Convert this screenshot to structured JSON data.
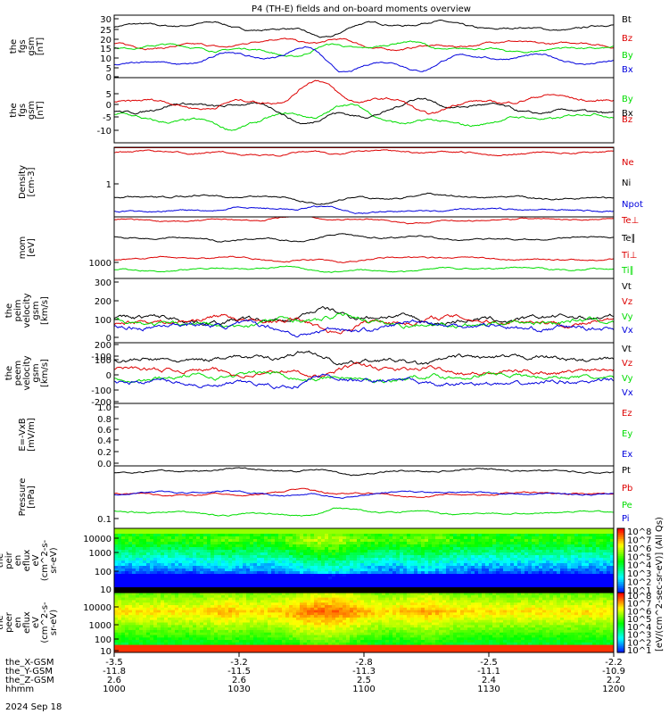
{
  "title": "P4 (TH-E) fields and on-board moments overview",
  "date_label": "2024 Sep 18",
  "colorbar_label": "[eV/(cm^2-sec-sr-eV)] (All Qs)",
  "colorbar_ticks": [
    "10^8",
    "10^7",
    "10^6",
    "10^5",
    "10^4",
    "10^3",
    "10^2",
    "10^1"
  ],
  "time_axis": {
    "rows": [
      {
        "label": "the_X-GSM",
        "values": [
          "-3.5",
          "-3.2",
          "-2.8",
          "-2.5",
          "-2.2"
        ]
      },
      {
        "label": "the_Y-GSM",
        "values": [
          "-11.8",
          "-11.5",
          "-11.3",
          "-11.1",
          "-10.9"
        ]
      },
      {
        "label": "the_Z-GSM",
        "values": [
          "2.6",
          "2.6",
          "2.5",
          "2.4",
          "2.2"
        ]
      },
      {
        "label": "hhmm",
        "values": [
          "1000",
          "1030",
          "1100",
          "1130",
          "1200"
        ]
      }
    ]
  },
  "colors": {
    "black": "#000000",
    "red": "#dd0000",
    "green": "#00dd00",
    "blue": "#0000dd"
  },
  "chart_data": [
    {
      "type": "line",
      "ylabel": "the fgs gsm [nT]",
      "ylim": [
        0,
        32
      ],
      "yticks": [
        "30",
        "25",
        "20",
        "15",
        "10",
        "5",
        "0"
      ],
      "series": [
        {
          "name": "Bt",
          "color": "black",
          "level": 26
        },
        {
          "name": "Bz",
          "color": "red",
          "level": 17
        },
        {
          "name": "By",
          "color": "green",
          "level": 15
        },
        {
          "name": "Bx",
          "color": "blue",
          "level": 9
        }
      ]
    },
    {
      "type": "line",
      "ylabel": "the fgs gsm [nT]",
      "ylim": [
        -15,
        10
      ],
      "yticks": [
        "5",
        "0",
        "-5",
        "-10"
      ],
      "series": [
        {
          "name": "By",
          "color": "green",
          "level": -6
        },
        {
          "name": "Bx",
          "color": "black",
          "level": -2
        },
        {
          "name": "Bz",
          "color": "red",
          "level": 1
        }
      ]
    },
    {
      "type": "line",
      "ylabel": "Density [cm-3]",
      "yscale": "log",
      "yticks": [
        "1"
      ],
      "series": [
        {
          "name": "Ne",
          "color": "red"
        },
        {
          "name": "Ni",
          "color": "black"
        },
        {
          "name": "Npot",
          "color": "blue"
        }
      ]
    },
    {
      "type": "line",
      "ylabel": "mom [eV]",
      "yscale": "log",
      "yticks": [
        "1000"
      ],
      "series": [
        {
          "name": "Te⊥",
          "color": "red"
        },
        {
          "name": "Te∥",
          "color": "black"
        },
        {
          "name": "Ti⊥",
          "color": "red"
        },
        {
          "name": "Ti∥",
          "color": "green"
        }
      ]
    },
    {
      "type": "line",
      "ylabel": "the peim velocity gsm [km/s]",
      "ylim": [
        -150,
        330
      ],
      "yticks": [
        "300",
        "200",
        "100",
        "0",
        "-100"
      ],
      "series": [
        {
          "name": "Vt",
          "color": "black"
        },
        {
          "name": "Vz",
          "color": "red"
        },
        {
          "name": "Vy",
          "color": "green"
        },
        {
          "name": "Vx",
          "color": "blue"
        }
      ]
    },
    {
      "type": "line",
      "ylabel": "the peem velocity gsm [km/s]",
      "ylim": [
        -200,
        210
      ],
      "yticks": [
        "200",
        "100",
        "0",
        "-100",
        "-200"
      ],
      "series": [
        {
          "name": "Vt",
          "color": "black"
        },
        {
          "name": "Vz",
          "color": "red"
        },
        {
          "name": "Vy",
          "color": "green"
        },
        {
          "name": "Vx",
          "color": "blue"
        }
      ]
    },
    {
      "type": "line",
      "ylabel": "E=-VxB [mV/m]",
      "ylim": [
        0,
        1
      ],
      "yticks": [
        "1.0",
        "0.8",
        "0.6",
        "0.4",
        "0.2",
        "0.0"
      ],
      "series": [
        {
          "name": "Ez",
          "color": "red"
        },
        {
          "name": "Ey",
          "color": "green"
        },
        {
          "name": "Ex",
          "color": "blue"
        }
      ]
    },
    {
      "type": "line",
      "ylabel": "Pressure [nPa]",
      "yscale": "log",
      "yticks": [
        "0.1"
      ],
      "series": [
        {
          "name": "Pt",
          "color": "black"
        },
        {
          "name": "Pb",
          "color": "red"
        },
        {
          "name": "Pe",
          "color": "green"
        },
        {
          "name": "Pi",
          "color": "blue"
        }
      ]
    },
    {
      "type": "heatmap",
      "ylabel": "the peir en eflux eV (cm^2-s-sr-eV)",
      "yscale": "log",
      "yticks": [
        "10000",
        "1000",
        "100",
        "10"
      ]
    },
    {
      "type": "heatmap",
      "ylabel": "the peer en eflux eV (cm^2-s-sr-eV)",
      "yscale": "log",
      "yticks": [
        "10000",
        "1000",
        "100",
        "10"
      ]
    }
  ]
}
